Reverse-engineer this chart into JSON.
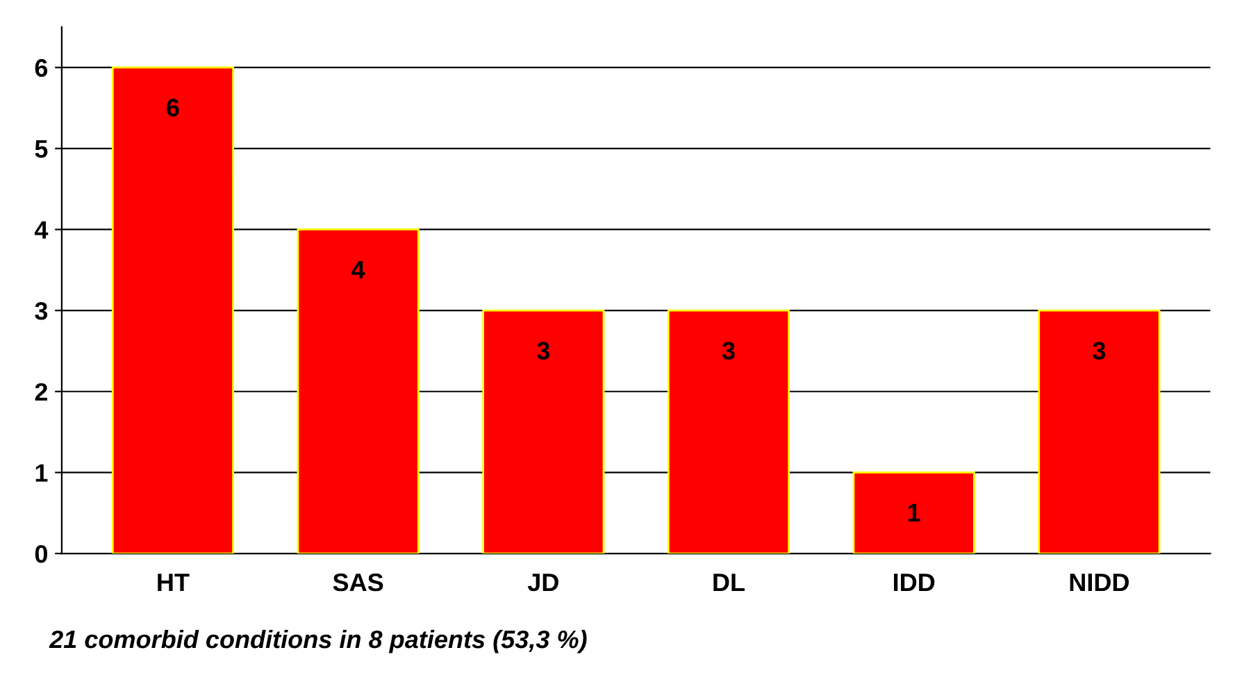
{
  "chart_data": {
    "type": "bar",
    "categories": [
      "HT",
      "SAS",
      "JD",
      "DL",
      "IDD",
      "NIDD"
    ],
    "values": [
      6,
      4,
      3,
      3,
      1,
      3
    ],
    "color": "#ff0000",
    "ylim": [
      0,
      6.5
    ],
    "yticks": [
      0,
      1,
      2,
      3,
      4,
      5,
      6
    ],
    "grid": "y",
    "data_labels": true,
    "annotations": [
      "21 comorbid conditions in 8 patients (53,3 %)"
    ]
  }
}
